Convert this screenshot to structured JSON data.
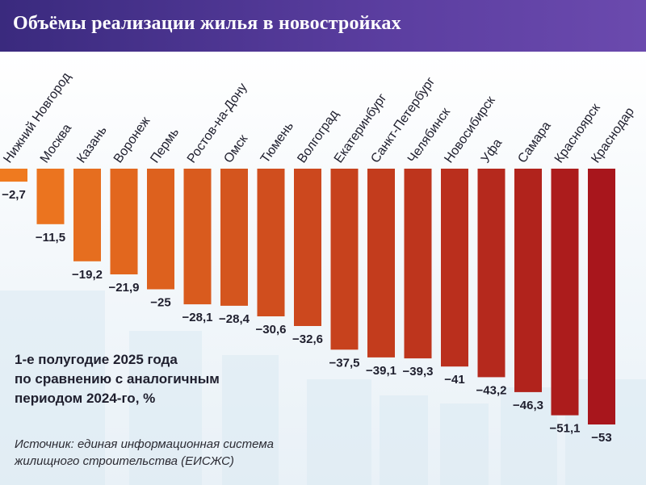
{
  "title": "Объёмы реализации жилья в новостройках",
  "note": "1-е полугодие 2025 года\nпо сравнению с аналогичным\nпериодом 2024-го, %",
  "source": "Источник: единая информационная система\nжилищного строительства (ЕИСЖС)",
  "colors": {
    "header": "#4a3290",
    "bar_light": "#ef7a1f",
    "bar_dark": "#a8161c",
    "label": "#1f1f2e",
    "buildings": "#dbe9f3"
  },
  "chart_data": {
    "type": "bar",
    "title": "Объёмы реализации жилья в новостройках",
    "categories": [
      "Нижний Новгород",
      "Москва",
      "Казань",
      "Воронеж",
      "Пермь",
      "Ростов-на-Дону",
      "Омск",
      "Тюмень",
      "Волгоград",
      "Екатеринбург",
      "Санкт-Петербург",
      "Челябинск",
      "Новосибирск",
      "Уфа",
      "Самара",
      "Красноярск",
      "Краснодар"
    ],
    "values": [
      -2.7,
      -11.5,
      -19.2,
      -21.9,
      -25,
      -28.1,
      -28.4,
      -30.6,
      -32.6,
      -37.5,
      -39.1,
      -39.3,
      -41,
      -43.2,
      -46.3,
      -51.1,
      -53
    ],
    "value_labels": [
      "−2,7",
      "−11,5",
      "−19,2",
      "−21,9",
      "−25",
      "−28,1",
      "−28,4",
      "−30,6",
      "−32,6",
      "−37,5",
      "−39,1",
      "−39,3",
      "−41",
      "−43,2",
      "−46,3",
      "−51,1",
      "−53"
    ],
    "ylim": [
      -53,
      0
    ],
    "grid": false,
    "legend": "none"
  }
}
